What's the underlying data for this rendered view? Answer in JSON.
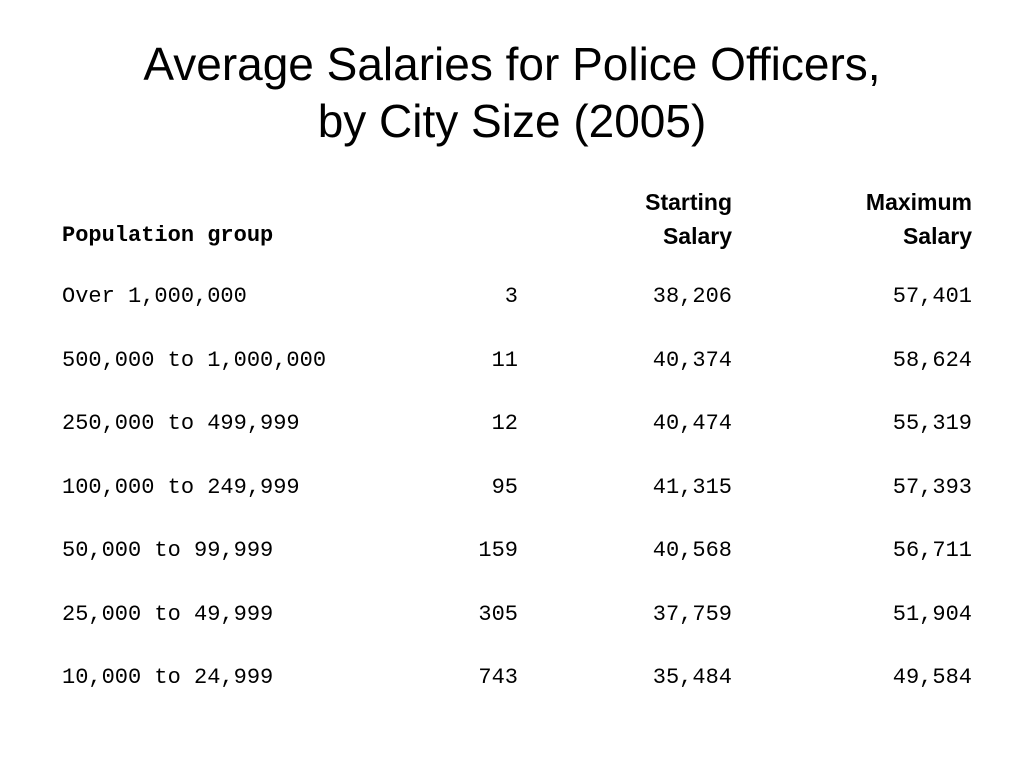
{
  "title": {
    "line1": "Average Salaries for Police Officers,",
    "line2": "by City Size (2005)"
  },
  "table": {
    "headers": {
      "population": "Population group",
      "count": "",
      "starting_line1": "Starting",
      "starting_line2": "Salary",
      "maximum_line1": "Maximum",
      "maximum_line2": "Salary"
    },
    "rows": [
      {
        "population": "Over 1,000,000",
        "count": "3",
        "starting": "38,206",
        "maximum": "57,401"
      },
      {
        "population": "500,000 to 1,000,000",
        "count": "11",
        "starting": "40,374",
        "maximum": "58,624"
      },
      {
        "population": "250,000 to 499,999",
        "count": "12",
        "starting": "40,474",
        "maximum": "55,319"
      },
      {
        "population": "100,000 to 249,999",
        "count": "95",
        "starting": "41,315",
        "maximum": "57,393"
      },
      {
        "population": "50,000 to 99,999",
        "count": "159",
        "starting": "40,568",
        "maximum": "56,711"
      },
      {
        "population": "25,000 to 49,999",
        "count": "305",
        "starting": "37,759",
        "maximum": "51,904"
      },
      {
        "population": "10,000 to 24,999",
        "count": "743",
        "starting": "35,484",
        "maximum": "49,584"
      }
    ]
  }
}
